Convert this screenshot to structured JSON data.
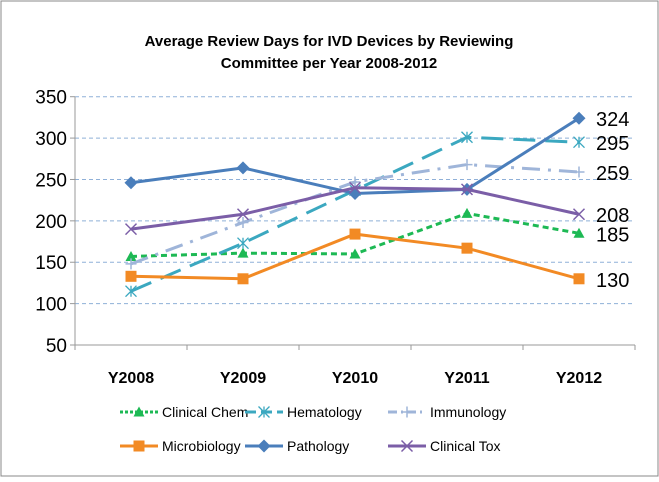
{
  "chart_data": {
    "type": "line",
    "title": "Average Review Days for IVD Devices by Reviewing Committee per Year 2008-2012",
    "title_lines": [
      "Average Review Days for IVD Devices by Reviewing",
      "Committee per Year 2008-2012"
    ],
    "categories": [
      "Y2008",
      "Y2009",
      "Y2010",
      "Y2011",
      "Y2012"
    ],
    "ylim": [
      50,
      350
    ],
    "yticks": [
      50,
      100,
      150,
      200,
      250,
      300,
      350
    ],
    "grid": true,
    "legend_position": "bottom",
    "series": [
      {
        "name": "Clinical Chem",
        "values": [
          157,
          161,
          160,
          209,
          185
        ],
        "color": "#1db954",
        "dash": "6,4",
        "marker": "triangle",
        "end_label": "185"
      },
      {
        "name": "Hematology",
        "values": [
          115,
          173,
          237,
          301,
          295
        ],
        "color": "#3ba8c0",
        "dash": "22,10",
        "marker": "star",
        "end_label": "295"
      },
      {
        "name": "Immunology",
        "values": [
          148,
          198,
          247,
          268,
          259
        ],
        "color": "#9fb5d9",
        "dash": "18,8,3,8",
        "marker": "plus",
        "end_label": "259"
      },
      {
        "name": "Microbiology",
        "values": [
          133,
          130,
          184,
          167,
          130
        ],
        "color": "#f28a24",
        "dash": "",
        "marker": "square",
        "end_label": "130"
      },
      {
        "name": "Pathology",
        "values": [
          246,
          264,
          233,
          238,
          324
        ],
        "color": "#4a7ebb",
        "dash": "",
        "marker": "diamond",
        "end_label": "324"
      },
      {
        "name": "Clinical Tox",
        "values": [
          190,
          208,
          240,
          238,
          208
        ],
        "color": "#7b5ea7",
        "dash": "",
        "marker": "x",
        "end_label": "208"
      }
    ]
  }
}
